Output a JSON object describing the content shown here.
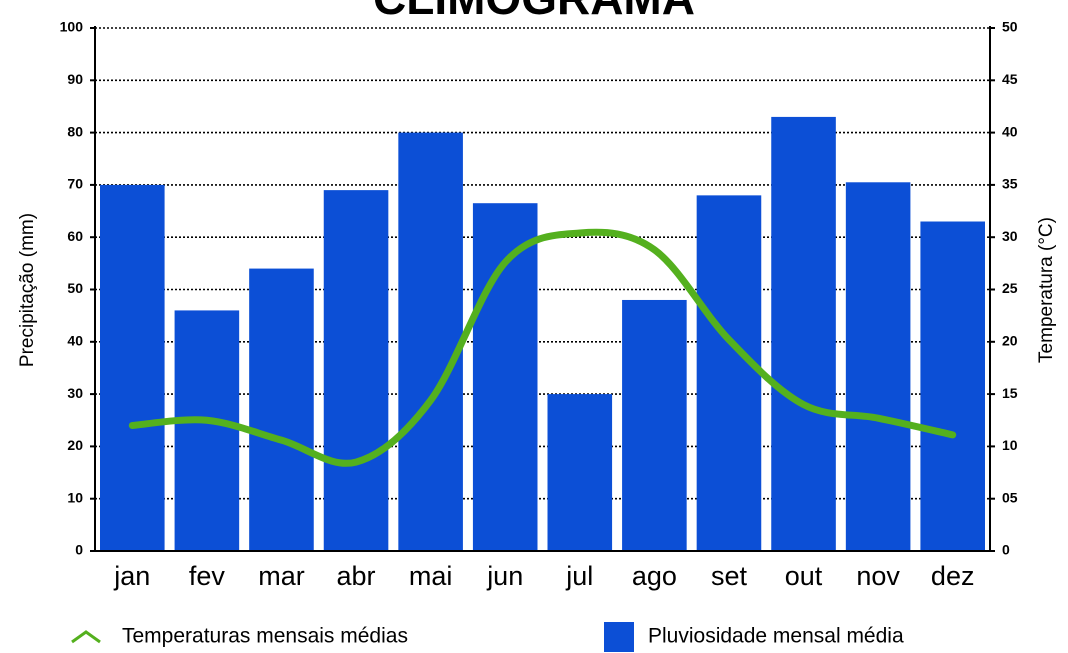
{
  "chart_data": {
    "type": "bar",
    "title": "CLIMOGRAMA",
    "ylabel": "Precipitação (mm)",
    "y2label": "Temperatura (°C)",
    "categories": [
      "jan",
      "fev",
      "mar",
      "abr",
      "mai",
      "jun",
      "jul",
      "ago",
      "set",
      "out",
      "nov",
      "dez"
    ],
    "series": [
      {
        "name": "Pluviosidade mensal média",
        "type": "bar",
        "color": "#0c4fd6",
        "values": [
          70,
          46,
          54,
          69,
          80,
          66.5,
          30,
          48,
          68,
          83,
          70.5,
          63
        ]
      },
      {
        "name": "Temperaturas mensais médias",
        "type": "line",
        "axis": "y2",
        "color": "#54b01e",
        "values": [
          12,
          12.5,
          10.6,
          8.5,
          14.4,
          27.6,
          30.4,
          28.8,
          20.2,
          14,
          12.7,
          11.1
        ]
      }
    ],
    "ylim": [
      0,
      100
    ],
    "yticks": [
      0,
      10,
      20,
      30,
      40,
      50,
      60,
      70,
      80,
      90,
      100
    ],
    "y2lim": [
      0,
      50
    ],
    "y2ticks": [
      0,
      {
        "value": 5,
        "label": "05"
      },
      10,
      15,
      20,
      25,
      30,
      35,
      40,
      45,
      50
    ],
    "grid": true
  }
}
